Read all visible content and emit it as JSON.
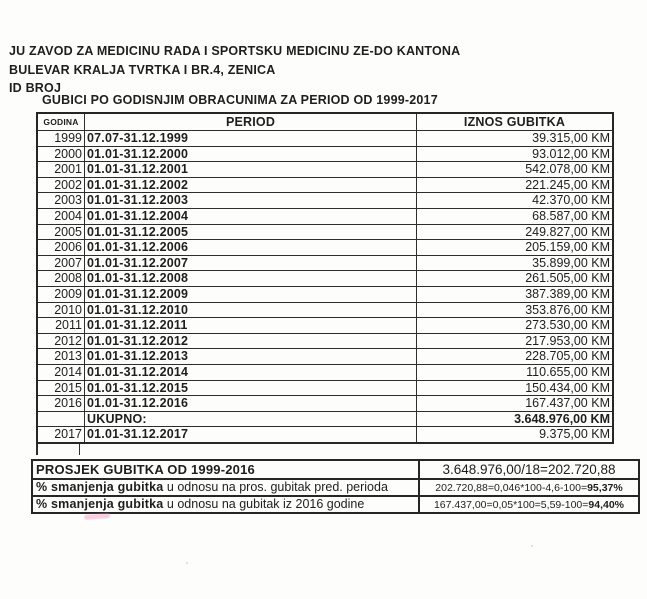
{
  "page": {
    "org_line1": "JU ZAVOD ZA MEDICINU RADA I SPORTSKU MEDICINU ZE-DO KANTONA",
    "org_line2": "BULEVAR KRALJA TVRTKA I BR.4, ZENICA",
    "org_line3": "ID BROJ",
    "table_title": "GUBICI PO GODISNJIM OBRACUNIMA ZA PERIOD OD 1999-2017"
  },
  "loss_table": {
    "columns": [
      "GODINA",
      "PERIOD",
      "IZNOS GUBITKA"
    ],
    "rows": [
      {
        "godina": "1999",
        "period": "07.07-31.12.1999",
        "iznos": "39.315,00 KM",
        "bold": false
      },
      {
        "godina": "2000",
        "period": "01.01-31.12.2000",
        "iznos": "93.012,00 KM",
        "bold": false
      },
      {
        "godina": "2001",
        "period": "01.01-31.12.2001",
        "iznos": "542.078,00 KM",
        "bold": false
      },
      {
        "godina": "2002",
        "period": "01.01-31.12.2002",
        "iznos": "221.245,00 KM",
        "bold": false
      },
      {
        "godina": "2003",
        "period": "01.01-31.12.2003",
        "iznos": "42.370,00 KM",
        "bold": false
      },
      {
        "godina": "2004",
        "period": "01.01-31.12.2004",
        "iznos": "68.587,00 KM",
        "bold": false
      },
      {
        "godina": "2005",
        "period": "01.01-31.12.2005",
        "iznos": "249.827,00 KM",
        "bold": false
      },
      {
        "godina": "2006",
        "period": "01.01-31.12.2006",
        "iznos": "205.159,00 KM",
        "bold": false
      },
      {
        "godina": "2007",
        "period": "01.01-31.12.2007",
        "iznos": "35.899,00 KM",
        "bold": false
      },
      {
        "godina": "2008",
        "period": "01.01-31.12.2008",
        "iznos": "261.505,00 KM",
        "bold": false
      },
      {
        "godina": "2009",
        "period": "01.01-31.12.2009",
        "iznos": "387.389,00 KM",
        "bold": false
      },
      {
        "godina": "2010",
        "period": "01.01-31.12.2010",
        "iznos": "353.876,00 KM",
        "bold": false
      },
      {
        "godina": "2011",
        "period": "01.01-31.12.2011",
        "iznos": "273.530,00 KM",
        "bold": false
      },
      {
        "godina": "2012",
        "period": "01.01-31.12.2012",
        "iznos": "217.953,00 KM",
        "bold": false
      },
      {
        "godina": "2013",
        "period": "01.01-31.12.2013",
        "iznos": "228.705,00 KM",
        "bold": false
      },
      {
        "godina": "2014",
        "period": "01.01-31.12.2014",
        "iznos": "110.655,00 KM",
        "bold": false
      },
      {
        "godina": "2015",
        "period": "01.01-31.12.2015",
        "iznos": "150.434,00 KM",
        "bold": false
      },
      {
        "godina": "2016",
        "period": "01.01-31.12.2016",
        "iznos": "167.437,00 KM",
        "bold": false
      },
      {
        "godina": "",
        "period": "UKUPNO:",
        "iznos": "3.648.976,00 KM",
        "bold": true
      },
      {
        "godina": "2017",
        "period": "01.01-31.12.2017",
        "iznos": "9.375,00 KM",
        "bold": false
      }
    ]
  },
  "summary_table": {
    "rows": [
      {
        "label_bold": "PROSJEK GUBITKA OD 1999-2016",
        "label_rest": "",
        "value": "3.648.976,00/18=202.720,88",
        "value_bold": "",
        "large": true
      },
      {
        "label_bold": "% smanjenja gubitka",
        "label_rest": " u odnosu na pros. gubitak pred. perioda",
        "value": "202.720,88=0,046*100-4,6-100=",
        "value_bold": "95,37%",
        "large": false
      },
      {
        "label_bold": "% smanjenja gubitka",
        "label_rest": " u odnosu na gubitak iz 2016 godine",
        "value": "167.437,00=0,05*100=5,59-100=",
        "value_bold": "94,40%",
        "large": false
      }
    ]
  }
}
